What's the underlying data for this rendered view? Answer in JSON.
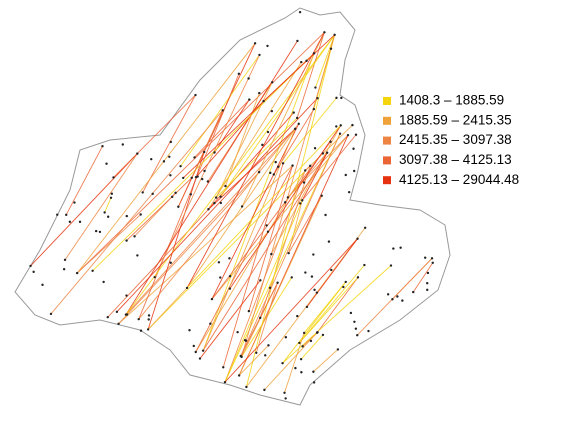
{
  "legend": [
    {
      "label": "1408.3 – 1885.59",
      "color": "#f5d40c"
    },
    {
      "label": "1885.59 – 2415.35",
      "color": "#f0a23a"
    },
    {
      "label": "2415.35 – 3097.38",
      "color": "#ee8442"
    },
    {
      "label": "3097.38 – 4125.13",
      "color": "#ec6434"
    },
    {
      "label": "4125.13 – 29044.48",
      "color": "#e6320e"
    }
  ]
}
